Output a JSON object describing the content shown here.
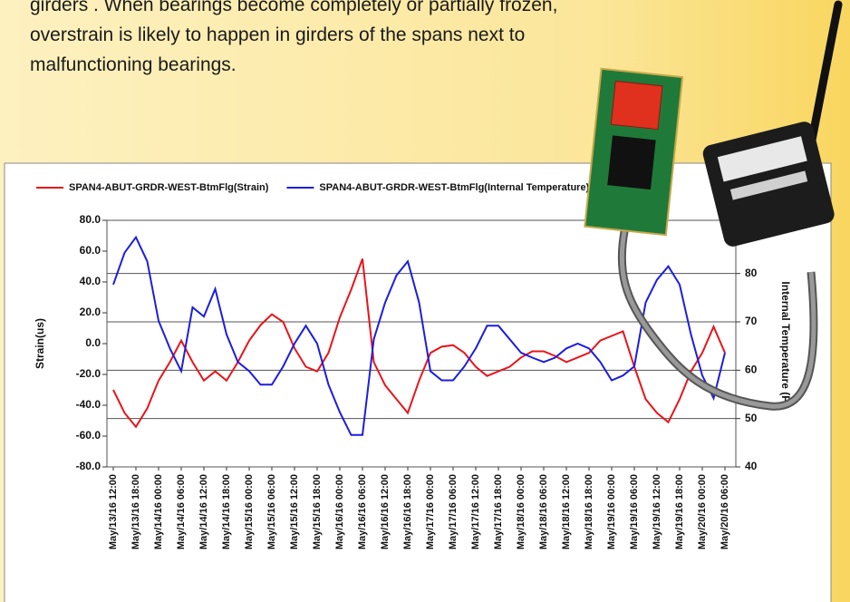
{
  "text": {
    "lines": [
      "girders . When bearings become completely or partially frozen,",
      "overstrain is likely to happen in girders of the spans next to",
      "malfunctioning bearings."
    ]
  },
  "chart_data": {
    "type": "line",
    "legend": "top",
    "y_label": "Strain(us)",
    "y2_label": "Internal Temperature (F)",
    "categories": [
      "May/13/16 12:00",
      null,
      "May/13/16 18:00",
      null,
      "May/14/16 00:00",
      null,
      "May/14/16 06:00",
      null,
      "May/14/16 12:00",
      null,
      "May/14/16 18:00",
      null,
      "May/15/16 00:00",
      null,
      "May/15/16 06:00",
      null,
      "May/15/16 12:00",
      null,
      "May/15/16 18:00",
      null,
      "May/16/16 00:00",
      null,
      "May/16/16 06:00",
      null,
      "May/16/16 12:00",
      null,
      "May/16/16 18:00",
      null,
      "May/17/16 00:00",
      null,
      "May/17/16 06:00",
      null,
      "May/17/16 12:00",
      null,
      "May/17/16 18:00",
      null,
      "May/18/16 00:00",
      null,
      "May/18/16 06:00",
      null,
      "May/18/16 12:00",
      null,
      "May/18/16 18:00",
      null,
      "May/19/16 00:00",
      null,
      "May/19/16 06:00",
      null,
      "May/19/16 12:00",
      null,
      "May/19/16 18:00",
      null,
      "May/20/16 00:00",
      null,
      "May/20/16 06:00"
    ],
    "series": [
      {
        "name": "SPAN4-ABUT-GRDR-WEST-BtmFlg(Strain)",
        "color": "#e8141b",
        "values": [
          -30,
          -45,
          -54,
          -42,
          -24,
          -12,
          2,
          -12,
          -24,
          -18,
          -24,
          -12,
          2,
          12,
          19,
          14,
          -3,
          -15,
          -18,
          -6,
          17,
          35,
          55,
          -12,
          -27,
          -36,
          -45,
          -24,
          -6,
          -2,
          -1,
          -6,
          -15,
          -21,
          -18,
          -15,
          -9,
          -5,
          -5,
          -8,
          -12,
          -9,
          -6,
          2,
          5,
          8,
          -15,
          -36,
          -45,
          -51,
          -36,
          -18,
          -6,
          11,
          -6
        ]
      },
      {
        "name": "SPAN4-ABUT-GRDR-WEST-BtmFlg(Internal Temperature)",
        "color": "#1d1de0",
        "axis": "y2",
        "values": [
          77.7,
          84.3,
          87.5,
          82.5,
          70.2,
          64.5,
          59.8,
          73,
          71.1,
          76.8,
          67.4,
          61.7,
          59.8,
          57,
          57,
          60.8,
          65.5,
          69.2,
          65.5,
          57,
          51.3,
          46.6,
          46.6,
          66.4,
          74,
          79.6,
          82.5,
          74,
          59.8,
          57.9,
          57.9,
          60.8,
          64.5,
          69.2,
          69.2,
          66.4,
          63.6,
          62.6,
          61.7,
          62.6,
          64.5,
          65.5,
          64.5,
          61.7,
          57.9,
          58.9,
          60.8,
          74,
          78.7,
          81.5,
          77.7,
          67.4,
          58.9,
          54.2,
          63.6
        ]
      }
    ],
    "ylim": [
      -80,
      80
    ],
    "yticks": [
      {
        "value": -80,
        "label": "-80.0"
      },
      {
        "value": -60,
        "label": "-60.0"
      },
      {
        "value": -40,
        "label": "-40.0"
      },
      {
        "value": -20,
        "label": "-20.0"
      },
      {
        "value": 0,
        "label": "0.0"
      },
      {
        "value": 20,
        "label": "20.0"
      },
      {
        "value": 40,
        "label": "40.0"
      },
      {
        "value": 60,
        "label": "60.0"
      },
      {
        "value": 80,
        "label": "80.0"
      }
    ],
    "y2lim": [
      40,
      91
    ],
    "y2ticks": [
      40,
      50,
      60,
      70,
      80
    ],
    "grid": true
  }
}
